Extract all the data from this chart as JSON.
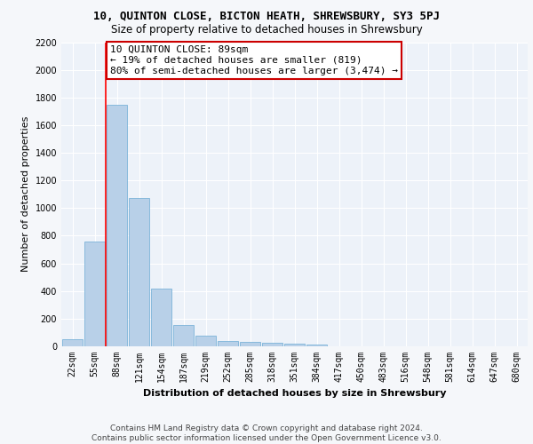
{
  "title1": "10, QUINTON CLOSE, BICTON HEATH, SHREWSBURY, SY3 5PJ",
  "title2": "Size of property relative to detached houses in Shrewsbury",
  "xlabel": "Distribution of detached houses by size in Shrewsbury",
  "ylabel": "Number of detached properties",
  "bar_values": [
    50,
    760,
    1750,
    1070,
    420,
    155,
    80,
    40,
    35,
    25,
    20,
    15,
    0,
    0,
    0,
    0,
    0,
    0,
    0,
    0,
    0
  ],
  "bar_labels": [
    "22sqm",
    "55sqm",
    "88sqm",
    "121sqm",
    "154sqm",
    "187sqm",
    "219sqm",
    "252sqm",
    "285sqm",
    "318sqm",
    "351sqm",
    "384sqm",
    "417sqm",
    "450sqm",
    "483sqm",
    "516sqm",
    "548sqm",
    "581sqm",
    "614sqm",
    "647sqm",
    "680sqm"
  ],
  "bar_color": "#b8d0e8",
  "bar_edge_color": "#6aaad4",
  "red_line_bar_index": 2,
  "annotation_text": "10 QUINTON CLOSE: 89sqm\n← 19% of detached houses are smaller (819)\n80% of semi-detached houses are larger (3,474) →",
  "annotation_box_color": "#ffffff",
  "annotation_box_edge_color": "#cc0000",
  "ylim": [
    0,
    2200
  ],
  "yticks": [
    0,
    200,
    400,
    600,
    800,
    1000,
    1200,
    1400,
    1600,
    1800,
    2000,
    2200
  ],
  "footer_line1": "Contains HM Land Registry data © Crown copyright and database right 2024.",
  "footer_line2": "Contains public sector information licensed under the Open Government Licence v3.0.",
  "bg_color": "#edf2f9",
  "grid_color": "#ffffff",
  "fig_bg_color": "#f5f7fa",
  "title1_fontsize": 9,
  "title2_fontsize": 8.5,
  "xlabel_fontsize": 8,
  "ylabel_fontsize": 8,
  "tick_fontsize": 7,
  "annotation_fontsize": 8,
  "footer_fontsize": 6.5
}
